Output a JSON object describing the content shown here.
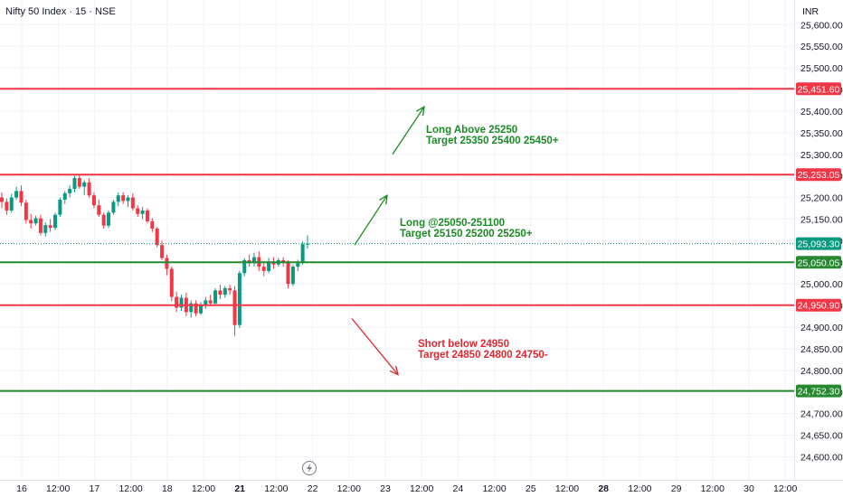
{
  "symbol_title": "Nifty 50 Index · 15 · NSE",
  "currency": "INR",
  "colors": {
    "red_level": "#f23645",
    "green_level": "#26892f",
    "current_price": "#089981",
    "candle_up": "#089981",
    "candle_down": "#f23645",
    "green_text": "#1b8a24",
    "red_text": "#e0262f",
    "grid": "#f0f3fa",
    "border": "#e0e3eb"
  },
  "event_icon": "lightning-icon",
  "chart_data": {
    "type": "candlestick",
    "title": "Nifty 50 Index · 15 · NSE",
    "ylim": [
      24575,
      25625
    ],
    "y_ticks": [
      "25,600.00",
      "25,550.00",
      "25,500.00",
      "25,450.00",
      "25,400.00",
      "25,350.00",
      "25,300.00",
      "25,250.00",
      "25,200.00",
      "25,150.00",
      "25,100.00",
      "25,050.00",
      "25,000.00",
      "24,950.00",
      "24,900.00",
      "24,850.00",
      "24,800.00",
      "24,750.00",
      "24,700.00",
      "24,650.00",
      "24,600.00"
    ],
    "x_ticks": [
      {
        "label": "16",
        "bold": false
      },
      {
        "label": "12:00",
        "bold": false
      },
      {
        "label": "17",
        "bold": false
      },
      {
        "label": "12:00",
        "bold": false
      },
      {
        "label": "18",
        "bold": false
      },
      {
        "label": "12:00",
        "bold": false
      },
      {
        "label": "21",
        "bold": true
      },
      {
        "label": "12:00",
        "bold": false
      },
      {
        "label": "22",
        "bold": false
      },
      {
        "label": "12:00",
        "bold": false
      },
      {
        "label": "23",
        "bold": false
      },
      {
        "label": "12:00",
        "bold": false
      },
      {
        "label": "24",
        "bold": false
      },
      {
        "label": "12:00",
        "bold": false
      },
      {
        "label": "25",
        "bold": false
      },
      {
        "label": "12:00",
        "bold": false
      },
      {
        "label": "28",
        "bold": true
      },
      {
        "label": "12:00",
        "bold": false
      },
      {
        "label": "29",
        "bold": false
      },
      {
        "label": "12:00",
        "bold": false
      },
      {
        "label": "30",
        "bold": false
      },
      {
        "label": "12:00",
        "bold": false
      }
    ],
    "levels": [
      {
        "value": 25451.6,
        "label": "25,451.60",
        "color": "red"
      },
      {
        "value": 25253.05,
        "label": "25,253.05",
        "color": "red"
      },
      {
        "value": 25050.05,
        "label": "25,050.05",
        "color": "green"
      },
      {
        "value": 24950.9,
        "label": "24,950.90",
        "color": "red"
      },
      {
        "value": 24752.3,
        "label": "24,752.30",
        "color": "green"
      }
    ],
    "last_price": {
      "value": 25093.3,
      "label": "25,093.30"
    },
    "candles": [
      [
        25200,
        25212,
        25175,
        25190
      ],
      [
        25190,
        25198,
        25160,
        25170
      ],
      [
        25170,
        25208,
        25165,
        25200
      ],
      [
        25200,
        25225,
        25195,
        25215
      ],
      [
        25215,
        25228,
        25180,
        25188
      ],
      [
        25188,
        25195,
        25140,
        25148
      ],
      [
        25148,
        25162,
        25128,
        25140
      ],
      [
        25140,
        25158,
        25135,
        25152
      ],
      [
        25152,
        25160,
        25112,
        25118
      ],
      [
        25118,
        25142,
        25110,
        25136
      ],
      [
        25136,
        25150,
        25120,
        25130
      ],
      [
        25130,
        25165,
        25125,
        25160
      ],
      [
        25160,
        25200,
        25155,
        25195
      ],
      [
        25195,
        25215,
        25185,
        25210
      ],
      [
        25210,
        25228,
        25200,
        25220
      ],
      [
        25220,
        25250,
        25212,
        25245
      ],
      [
        25245,
        25252,
        25220,
        25225
      ],
      [
        25225,
        25240,
        25205,
        25235
      ],
      [
        25235,
        25245,
        25200,
        25205
      ],
      [
        25205,
        25212,
        25175,
        25182
      ],
      [
        25182,
        25195,
        25155,
        25160
      ],
      [
        25160,
        25165,
        25128,
        25135
      ],
      [
        25135,
        25170,
        25130,
        25165
      ],
      [
        25165,
        25195,
        25160,
        25190
      ],
      [
        25190,
        25212,
        25180,
        25205
      ],
      [
        25205,
        25212,
        25185,
        25192
      ],
      [
        25192,
        25205,
        25178,
        25200
      ],
      [
        25200,
        25210,
        25170,
        25175
      ],
      [
        25175,
        25182,
        25155,
        25162
      ],
      [
        25162,
        25178,
        25150,
        25170
      ],
      [
        25170,
        25175,
        25140,
        25145
      ],
      [
        25145,
        25152,
        25120,
        25128
      ],
      [
        25128,
        25132,
        25085,
        25090
      ],
      [
        25090,
        25100,
        25055,
        25060
      ],
      [
        25060,
        25068,
        25020,
        25035
      ],
      [
        25035,
        25040,
        24960,
        24970
      ],
      [
        24970,
        24982,
        24935,
        24945
      ],
      [
        24945,
        24975,
        24938,
        24968
      ],
      [
        24968,
        24980,
        24925,
        24935
      ],
      [
        24935,
        24962,
        24922,
        24955
      ],
      [
        24955,
        24962,
        24925,
        24932
      ],
      [
        24932,
        24958,
        24928,
        24950
      ],
      [
        24950,
        24970,
        24942,
        24962
      ],
      [
        24962,
        24975,
        24950,
        24955
      ],
      [
        24955,
        24990,
        24950,
        24985
      ],
      [
        24985,
        24998,
        24965,
        24975
      ],
      [
        24975,
        24995,
        24968,
        24990
      ],
      [
        24990,
        24998,
        24975,
        24985
      ],
      [
        24985,
        24995,
        24880,
        24905
      ],
      [
        24905,
        25030,
        24898,
        25025
      ],
      [
        25025,
        25060,
        25018,
        25055
      ],
      [
        25055,
        25068,
        25040,
        25048
      ],
      [
        25048,
        25072,
        25040,
        25062
      ],
      [
        25062,
        25075,
        25030,
        25040
      ],
      [
        25040,
        25052,
        25018,
        25030
      ],
      [
        25030,
        25060,
        25025,
        25052
      ],
      [
        25052,
        25062,
        25035,
        25045
      ],
      [
        25045,
        25060,
        25040,
        25055
      ],
      [
        25055,
        25062,
        25040,
        25050
      ],
      [
        25050,
        25055,
        24990,
        25000
      ],
      [
        25000,
        25045,
        24995,
        25040
      ],
      [
        25040,
        25056,
        25030,
        25048
      ],
      [
        25048,
        25098,
        25045,
        25092
      ],
      [
        25092,
        25112,
        25082,
        25093
      ]
    ],
    "arrows": [
      {
        "from_date_label": "22 14:30",
        "from": 25300,
        "to": 25410,
        "color": "green"
      },
      {
        "from_date_label": "22 11:00",
        "from": 25090,
        "to": 25205,
        "color": "green"
      },
      {
        "from_date_label": "22 11:30",
        "from": 24920,
        "to": 24790,
        "color": "red"
      }
    ],
    "annotations": [
      {
        "lines": [
          "Long  Above 25250",
          "Target 25350 25400 25450+"
        ],
        "color": "green"
      },
      {
        "lines": [
          "Long  @25050-251100",
          "Target 25150 25200 25250+"
        ],
        "color": "green"
      },
      {
        "lines": [
          "Short below 24950",
          "Target 24850 24800 24750-"
        ],
        "color": "red"
      }
    ]
  }
}
